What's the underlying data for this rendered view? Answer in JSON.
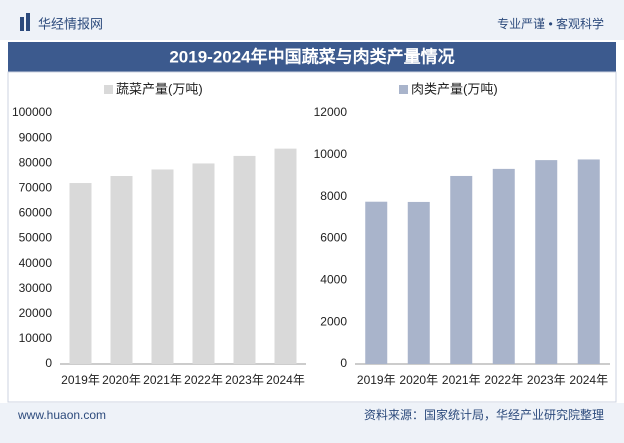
{
  "header": {
    "brand": "华经情报网",
    "tagline": "专业严谨 • 客观科学"
  },
  "title": "2019-2024年中国蔬菜与肉类产量情况",
  "chart_data": [
    {
      "type": "bar",
      "categories": [
        "2019年",
        "2020年",
        "2021年",
        "2022年",
        "2023年",
        "2024年"
      ],
      "series": [
        {
          "name": "蔬菜产量(万吨)",
          "color": "#d9d9d9",
          "values": [
            72100,
            74900,
            77500,
            79900,
            82900,
            85800
          ]
        }
      ],
      "ylim": [
        0,
        100000
      ],
      "yticks": [
        0,
        10000,
        20000,
        30000,
        40000,
        50000,
        60000,
        70000,
        80000,
        90000,
        100000
      ],
      "grid": false
    },
    {
      "type": "bar",
      "categories": [
        "2019年",
        "2020年",
        "2021年",
        "2022年",
        "2023年",
        "2024年"
      ],
      "series": [
        {
          "name": "肉类产量(万吨)",
          "color": "#a9b4cb",
          "values": [
            7759,
            7748,
            8990,
            9328,
            9748,
            9779
          ]
        }
      ],
      "ylim": [
        0,
        12000
      ],
      "yticks": [
        0,
        2000,
        4000,
        6000,
        8000,
        10000,
        12000
      ],
      "grid": false
    }
  ],
  "footer": {
    "url": "www.huaon.com",
    "source": "资料来源：国家统计局，华经产业研究院整理"
  }
}
